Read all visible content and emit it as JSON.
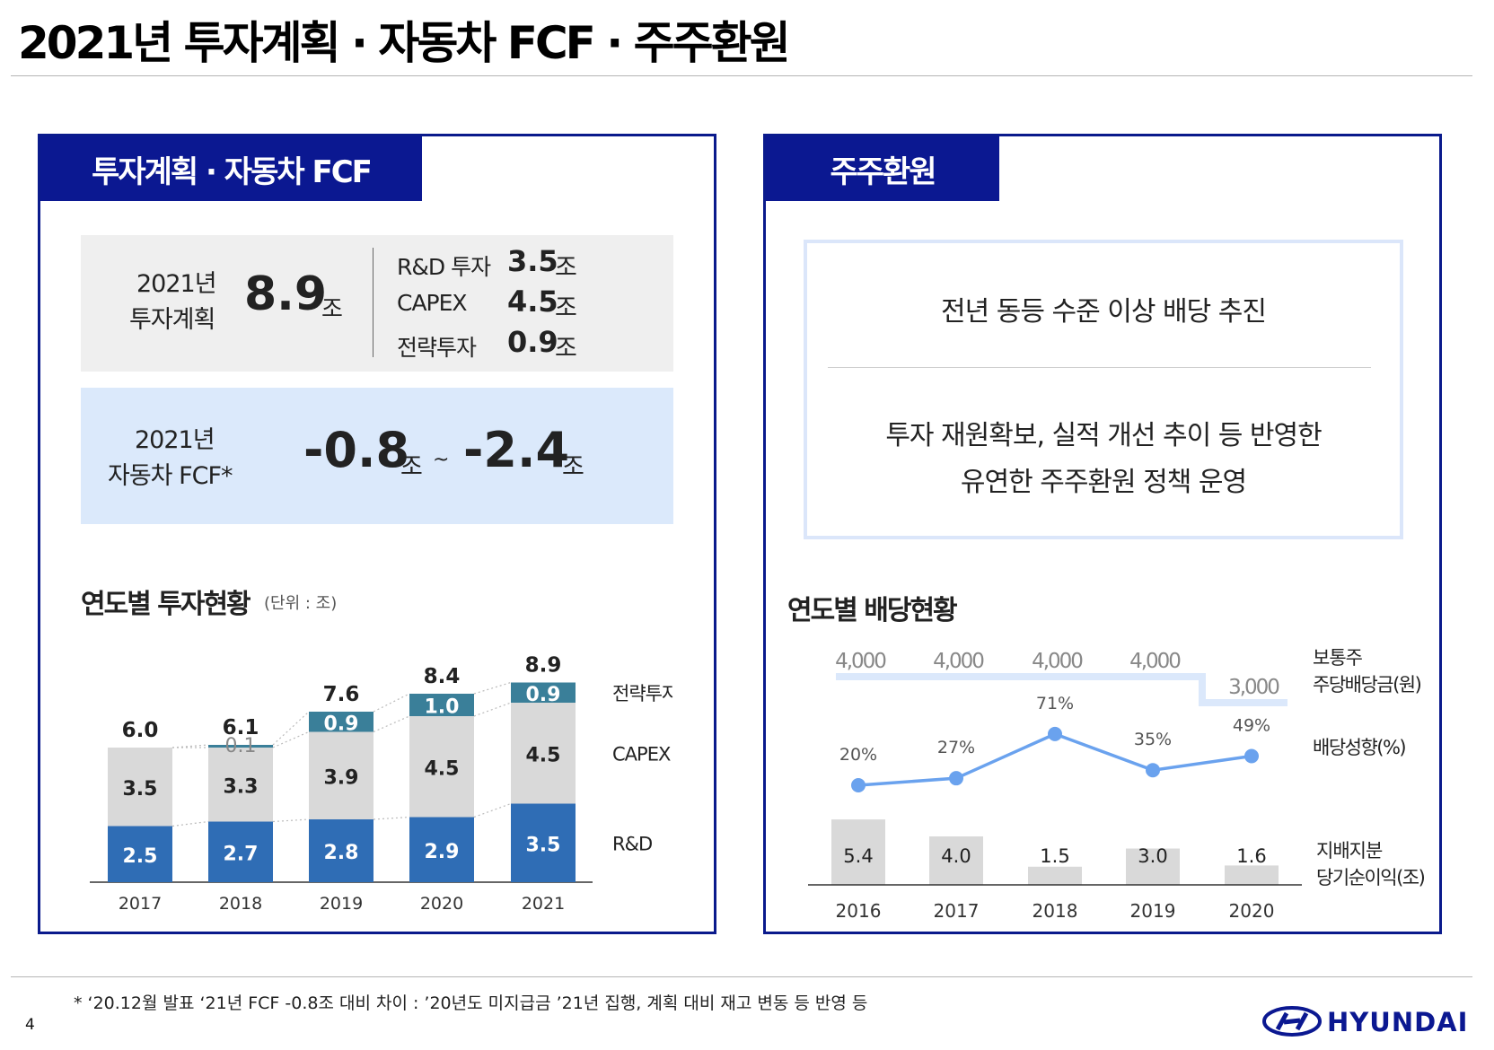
{
  "title": "2021년 투자계획 · 자동차 FCF · 주주환원",
  "left": {
    "tab": "투자계획 · 자동차 FCF",
    "plan_label_1": "2021년",
    "plan_label_2": "투자계획",
    "plan_total": "8.9",
    "unit": "조",
    "breakdown": [
      {
        "label": "R&D 투자",
        "value": "3.5"
      },
      {
        "label": "CAPEX",
        "value": "4.5"
      },
      {
        "label": "전략투자",
        "value": "0.9"
      }
    ],
    "fcf_label_1": "2021년",
    "fcf_label_2": "자동차 FCF*",
    "fcf_low": "-0.8",
    "fcf_sep": "~",
    "fcf_high": "-2.4",
    "chart_title": "연도별 투자현황",
    "chart_unit": "(단위 : 조)"
  },
  "right": {
    "tab": "주주환원",
    "headline": "전년 동등 수준 이상 배당 추진",
    "body_1": "투자 재원확보, 실적 개선 추이 등 반영한",
    "body_2": "유연한 주주환원 정책 운영",
    "chart_title": "연도별 배당현황"
  },
  "footnote": "* ‘20.12월 발표 ‘21년 FCF -0.8조 대비 차이 : ’20년도 미지급금 ’21년 집행, 계획 대비 재고 변동 등 반영 등",
  "page_number": "4",
  "logo_text": "HYUNDAI",
  "colors": {
    "navy": "#0b1891",
    "rnd": "#2f6db5",
    "capex": "#d9d9d9",
    "strategic": "#3a7f99",
    "dividend_line": "#dbe8fb",
    "payout_line": "#6aa2ee",
    "net_income_bar": "#d9d9d9"
  },
  "chart_data": [
    {
      "type": "bar",
      "stacked": true,
      "title": "연도별 투자현황",
      "unit": "(단위 : 조)",
      "categories": [
        "2017",
        "2018",
        "2019",
        "2020",
        "2021"
      ],
      "series": [
        {
          "name": "R&D",
          "values": [
            2.5,
            2.7,
            2.8,
            2.9,
            3.5
          ],
          "labels": [
            "2.5",
            "2.7",
            "2.8",
            "2.9",
            "3.5"
          ]
        },
        {
          "name": "CAPEX",
          "values": [
            3.5,
            3.3,
            3.9,
            4.5,
            4.5
          ],
          "labels": [
            "3.5",
            "3.3",
            "3.9",
            "4.5",
            "4.5"
          ]
        },
        {
          "name": "전략투자",
          "values": [
            0,
            0.1,
            0.9,
            1.0,
            0.9
          ],
          "labels": [
            "",
            "0.1",
            "0.9",
            "1.0",
            "0.9"
          ]
        }
      ],
      "totals": [
        "6.0",
        "6.1",
        "7.6",
        "8.4",
        "8.9"
      ]
    },
    {
      "type": "line",
      "title": "연도별 배당현황",
      "categories": [
        "2016",
        "2017",
        "2018",
        "2019",
        "2020"
      ],
      "series": [
        {
          "name": "보통주 주당배당금(원)",
          "legend": [
            "보통주",
            "주당배당금(원)"
          ],
          "values": [
            4000,
            4000,
            4000,
            4000,
            3000
          ],
          "labels": [
            "4,000",
            "4,000",
            "4,000",
            "4,000",
            "3,000"
          ]
        },
        {
          "name": "배당성향(%)",
          "legend": [
            "배당성향(%)"
          ],
          "values": [
            20,
            27,
            71,
            35,
            49
          ],
          "labels": [
            "20%",
            "27%",
            "71%",
            "35%",
            "49%"
          ]
        },
        {
          "name": "지배지분 당기순이익(조)",
          "legend": [
            "지배지분",
            "당기순이익(조)"
          ],
          "type": "bar",
          "values": [
            5.4,
            4.0,
            1.5,
            3.0,
            1.6
          ],
          "labels": [
            "5.4",
            "4.0",
            "1.5",
            "3.0",
            "1.6"
          ]
        }
      ]
    }
  ]
}
